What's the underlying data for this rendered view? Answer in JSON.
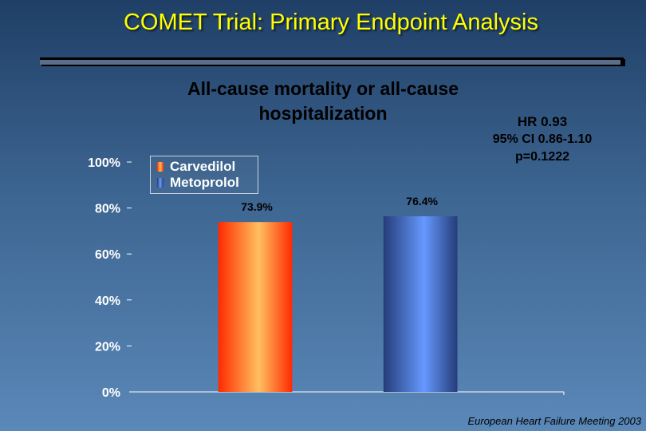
{
  "slide": {
    "title": "COMET Trial: Primary Endpoint Analysis",
    "footer": "European Heart Failure Meeting 2003"
  },
  "stats": {
    "hr": "HR 0.93",
    "ci": "95% CI 0.86-1.10",
    "p": "p=0.1222"
  },
  "colors": {
    "title": "#ffff00",
    "carvedilol_edge": "#ff2a00",
    "carvedilol_center": "#ffc060",
    "metoprolol_edge": "#253c78",
    "metoprolol_center": "#6699ff"
  },
  "chart_data": {
    "type": "bar",
    "title": "All-cause mortality or all-cause hospitalization",
    "categories": [
      "Carvedilol",
      "Metoprolol"
    ],
    "values": [
      73.9,
      76.4
    ],
    "value_labels": [
      "73.9%",
      "76.4%"
    ],
    "ylim": [
      0,
      100
    ],
    "yticks": [
      0,
      20,
      40,
      60,
      80,
      100
    ],
    "ytick_labels": [
      "0%",
      "20%",
      "40%",
      "60%",
      "80%",
      "100%"
    ],
    "xlabel": "",
    "ylabel": "",
    "grid": false,
    "legend": {
      "position": "top-left",
      "entries": [
        "Carvedilol",
        "Metoprolol"
      ]
    }
  }
}
